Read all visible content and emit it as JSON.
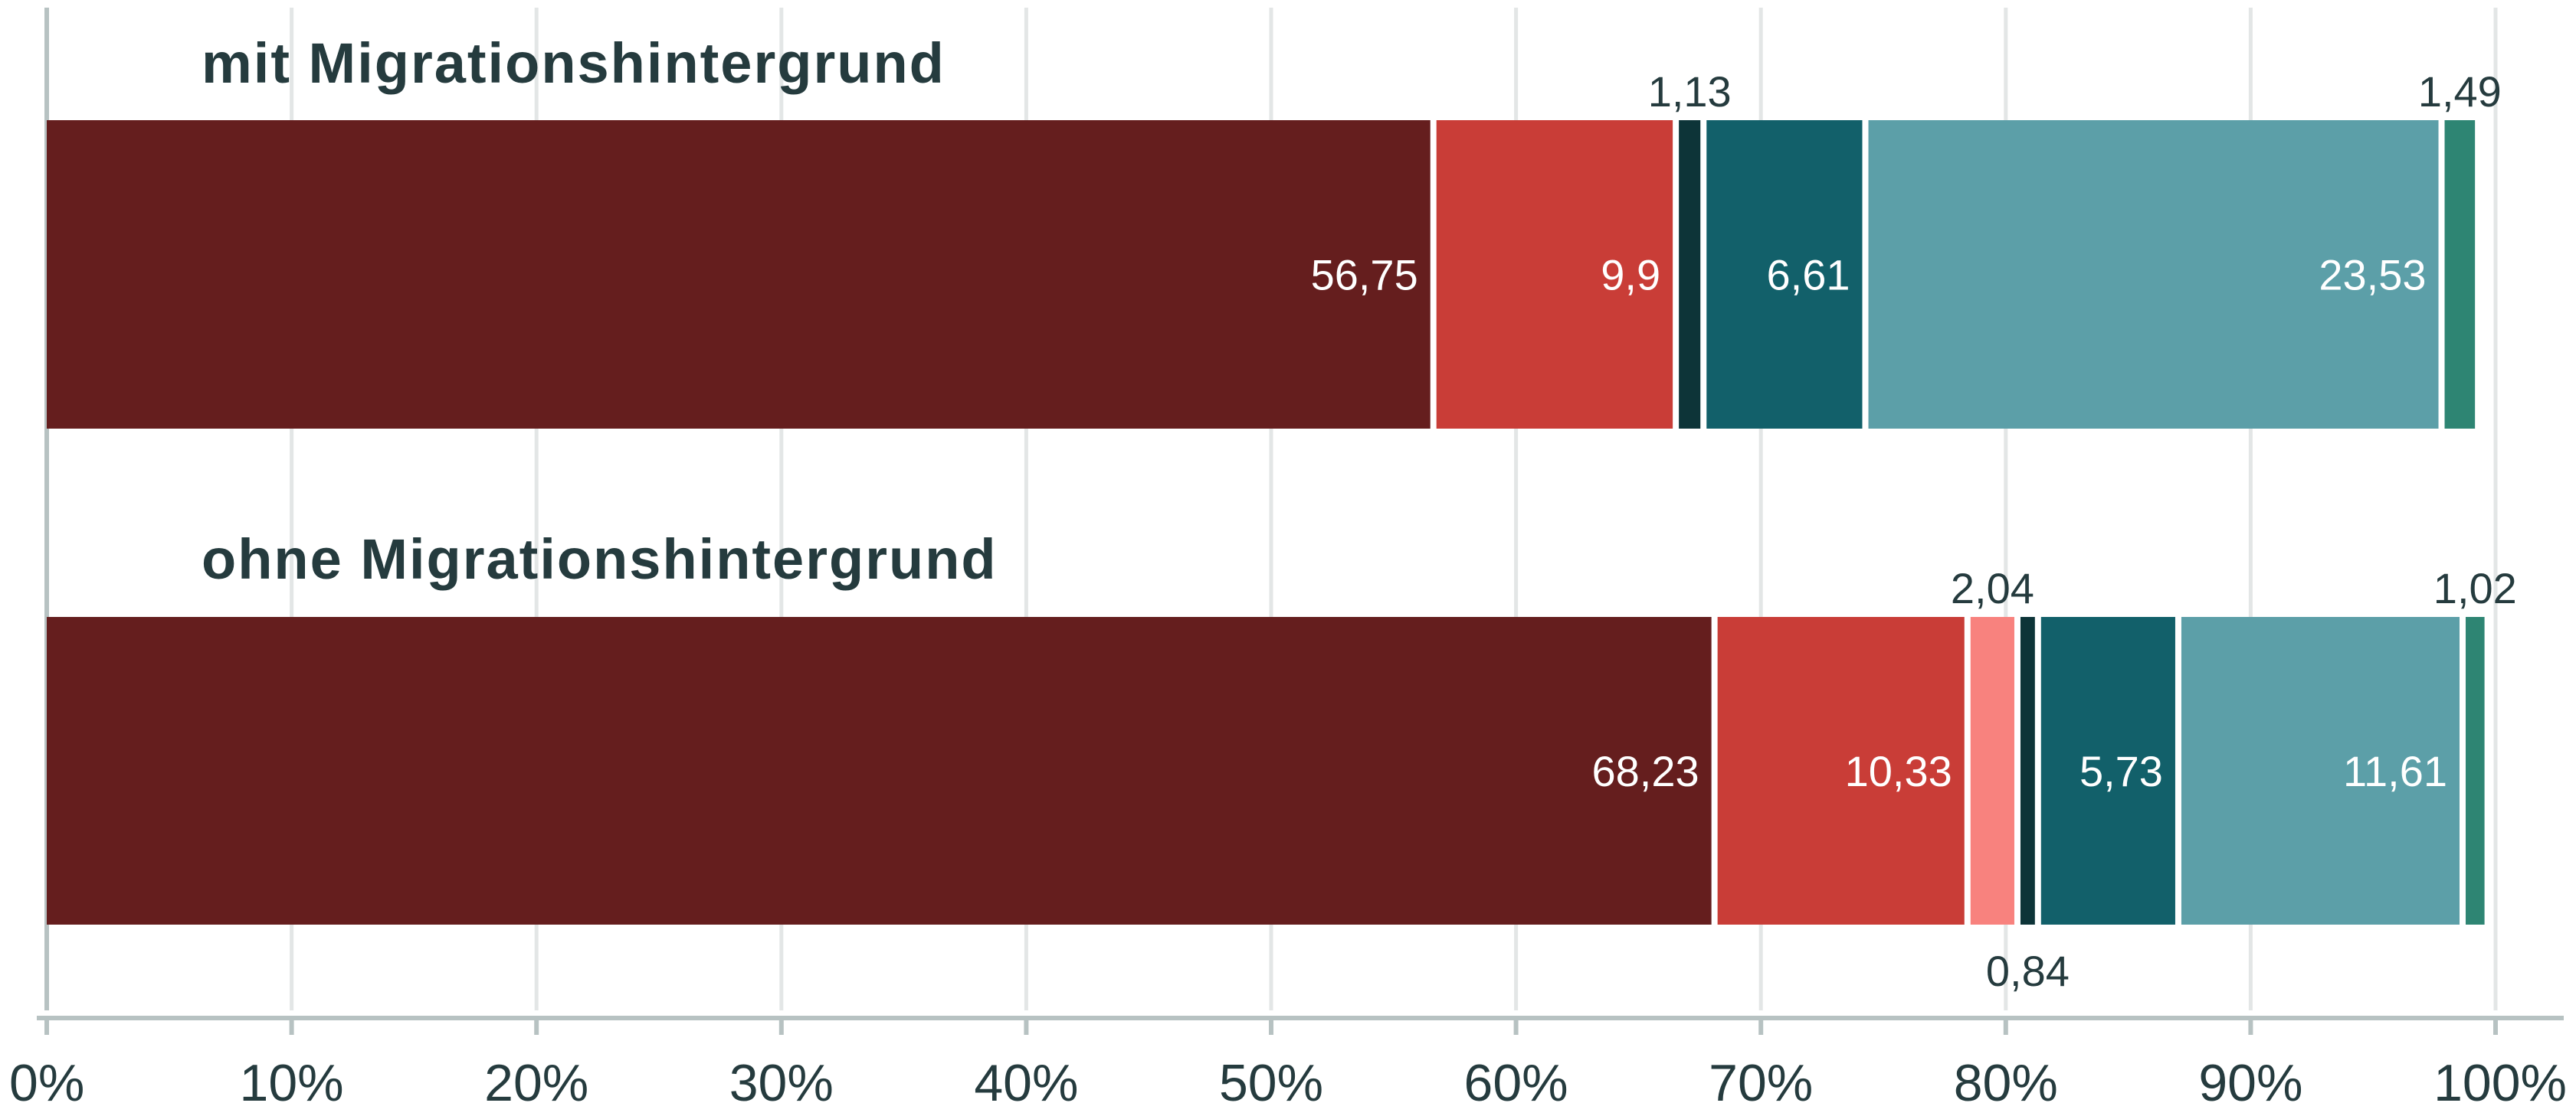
{
  "chart_data": {
    "type": "bar",
    "orientation": "horizontal",
    "stacked": true,
    "categories": [
      "mit Migrationshintergrund",
      "ohne Migrationshintergrund"
    ],
    "segment_colors": [
      "#651e1e",
      "#c93d37",
      "#f8827e",
      "#0d3438",
      "#12606a",
      "#5c9fa8",
      "#2e8573"
    ],
    "bars": [
      {
        "label": "mit Migrationshintergrund",
        "segments": [
          {
            "value": 56.75,
            "color": "#651e1e",
            "text": "56,75",
            "label_pos": "inside"
          },
          {
            "value": 9.9,
            "color": "#c93d37",
            "text": "9,9",
            "label_pos": "inside"
          },
          {
            "value": 1.13,
            "color": "#0d3438",
            "text": "1,13",
            "label_pos": "above"
          },
          {
            "value": 6.61,
            "color": "#12606a",
            "text": "6,61",
            "label_pos": "inside"
          },
          {
            "value": 23.53,
            "color": "#5c9fa8",
            "text": "23,53",
            "label_pos": "inside"
          },
          {
            "value": 1.49,
            "color": "#2e8573",
            "text": "1,49",
            "label_pos": "above"
          }
        ]
      },
      {
        "label": "ohne Migrationshintergrund",
        "segments": [
          {
            "value": 68.23,
            "color": "#651e1e",
            "text": "68,23",
            "label_pos": "inside"
          },
          {
            "value": 10.33,
            "color": "#c93d37",
            "text": "10,33",
            "label_pos": "inside"
          },
          {
            "value": 2.04,
            "color": "#f8827e",
            "text": "2,04",
            "label_pos": "above"
          },
          {
            "value": 0.84,
            "color": "#0d3438",
            "text": "0,84",
            "label_pos": "below"
          },
          {
            "value": 5.73,
            "color": "#12606a",
            "text": "5,73",
            "label_pos": "inside"
          },
          {
            "value": 11.61,
            "color": "#5c9fa8",
            "text": "11,61",
            "label_pos": "inside"
          },
          {
            "value": 1.02,
            "color": "#2e8573",
            "text": "1,02",
            "label_pos": "above"
          }
        ]
      }
    ],
    "xlim": [
      0,
      100
    ],
    "xticks": [
      0,
      10,
      20,
      30,
      40,
      50,
      60,
      70,
      80,
      90,
      100
    ],
    "xtick_labels": [
      "0%",
      "10%",
      "20%",
      "30%",
      "40%",
      "50%",
      "60%",
      "70%",
      "80%",
      "90%",
      "100%"
    ],
    "grid": true,
    "legend": "none",
    "colors": {
      "text": "#253b3e",
      "grid": "#e3e6e6",
      "axis": "#b7c2c2"
    }
  }
}
